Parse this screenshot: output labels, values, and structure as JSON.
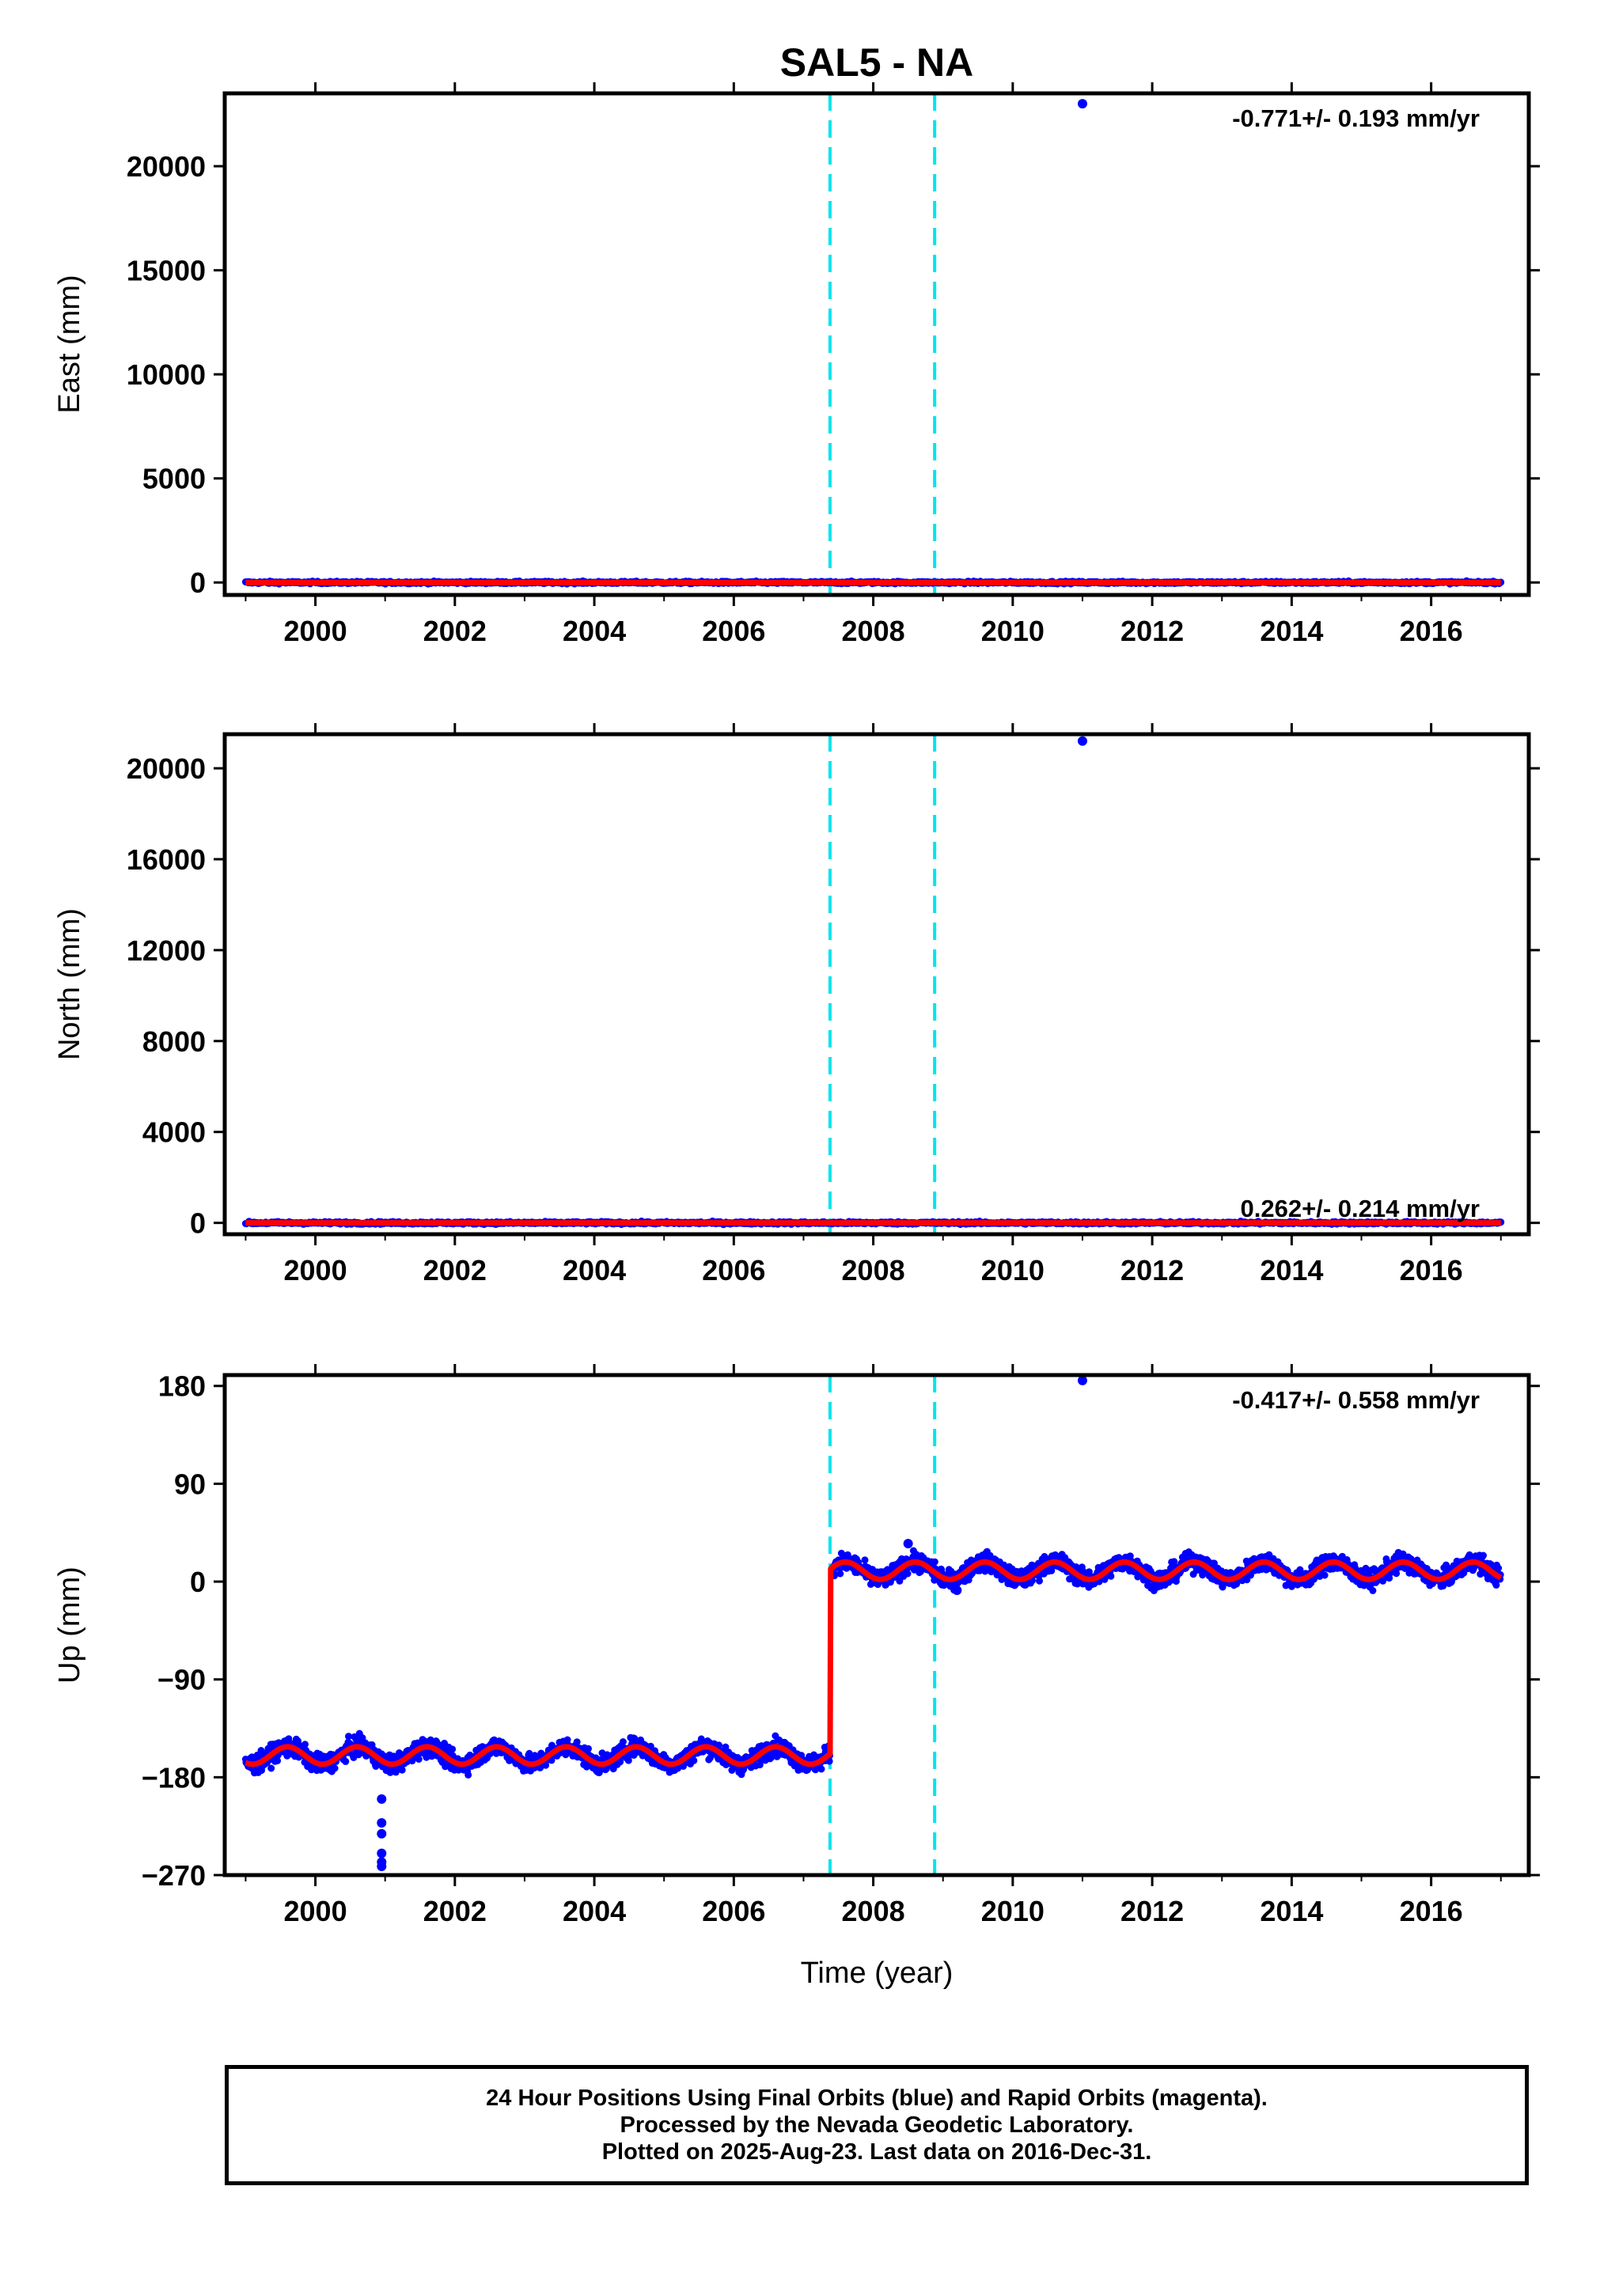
{
  "title": "SAL5 - NA",
  "colors": {
    "final_orbits": "#0000ff",
    "model_fit": "#ff0000",
    "event_lines": "#00e5ee",
    "axes": "#000000"
  },
  "x_axis": {
    "label": "Time (year)",
    "range": [
      1998.7,
      2017.4
    ],
    "ticks": [
      "2000",
      "2002",
      "2004",
      "2006",
      "2008",
      "2010",
      "2012",
      "2014",
      "2016"
    ]
  },
  "event_lines_years": [
    2007.38,
    2008.88
  ],
  "chart_data": [
    {
      "type": "scatter",
      "ylabel": "East (mm)",
      "ylim": [
        -600,
        23500
      ],
      "yticks": [
        "0",
        "5000",
        "10000",
        "15000",
        "20000"
      ],
      "x_range": [
        1999.0,
        2017.0
      ],
      "baseline_mm": 0,
      "outliers": [
        {
          "x": 2011.0,
          "y": 23000
        }
      ],
      "rate_label": "-0.771+/- 0.193 mm/yr",
      "rate_label_position": "top-right",
      "series": [
        {
          "kind": "points",
          "color": "blue"
        },
        {
          "kind": "fit",
          "color": "red"
        }
      ]
    },
    {
      "type": "scatter",
      "ylabel": "North (mm)",
      "ylim": [
        -500,
        21500
      ],
      "yticks": [
        "0",
        "4000",
        "8000",
        "12000",
        "16000",
        "20000"
      ],
      "x_range": [
        1999.0,
        2017.0
      ],
      "baseline_mm": 0,
      "outliers": [
        {
          "x": 2011.0,
          "y": 21200
        }
      ],
      "rate_label": "0.262+/- 0.214 mm/yr",
      "rate_label_position": "bottom-right",
      "series": [
        {
          "kind": "points",
          "color": "blue"
        },
        {
          "kind": "fit",
          "color": "red"
        }
      ]
    },
    {
      "type": "scatter",
      "ylabel": "Up (mm)",
      "ylim": [
        -270,
        190
      ],
      "yticks": [
        "−270",
        "−180",
        "−90",
        "0",
        "90",
        "180"
      ],
      "x_range": [
        1999.0,
        2017.0
      ],
      "offset_year": 2007.38,
      "level_before_mm": -160,
      "level_after_mm": 10,
      "seasonal_amplitude_mm": 8,
      "noise_mm": 6,
      "outliers": [
        {
          "x": 2011.0,
          "y": 185
        },
        {
          "x": 2000.95,
          "y": -200
        },
        {
          "x": 2000.95,
          "y": -222
        },
        {
          "x": 2000.95,
          "y": -232
        },
        {
          "x": 2000.95,
          "y": -250
        },
        {
          "x": 2000.95,
          "y": -258
        },
        {
          "x": 2000.95,
          "y": -262
        },
        {
          "x": 2008.5,
          "y": 35
        },
        {
          "x": 2009.2,
          "y": -8
        }
      ],
      "rate_label": "-0.417+/- 0.558 mm/yr",
      "rate_label_position": "top-right",
      "series": [
        {
          "kind": "points",
          "color": "blue"
        },
        {
          "kind": "fit",
          "color": "red"
        }
      ]
    }
  ],
  "caption": {
    "line1": "24 Hour Positions Using Final Orbits (blue) and Rapid Orbits (magenta).",
    "line2": "Processed by the Nevada Geodetic Laboratory.",
    "line3": "Plotted on 2025-Aug-23. Last data on 2016-Dec-31."
  }
}
